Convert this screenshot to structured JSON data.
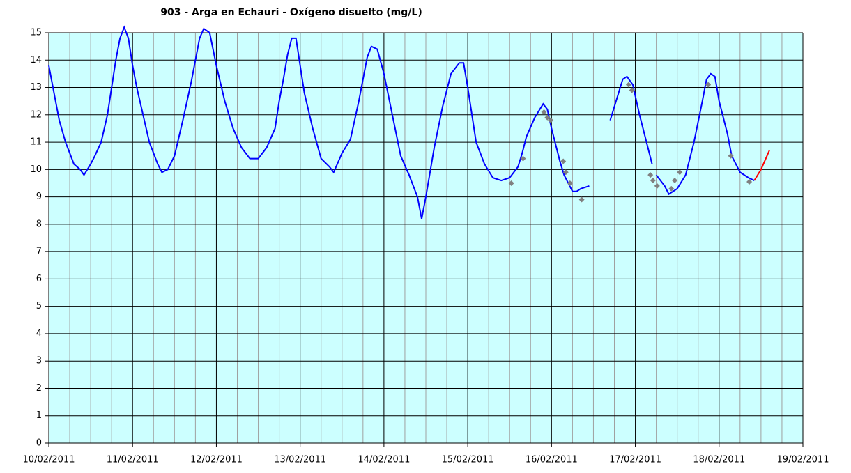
{
  "chart_data": {
    "type": "line",
    "title": "903 - Arga en Echauri - Oxígeno disuelto (mg/L)",
    "xlim": [
      40584,
      40593
    ],
    "xticks": [
      {
        "value": 40584,
        "label": "10/02/2011"
      },
      {
        "value": 40585,
        "label": "11/02/2011"
      },
      {
        "value": 40586,
        "label": "12/02/2011"
      },
      {
        "value": 40587,
        "label": "13/02/2011"
      },
      {
        "value": 40588,
        "label": "14/02/2011"
      },
      {
        "value": 40589,
        "label": "15/02/2011"
      },
      {
        "value": 40590,
        "label": "16/02/2011"
      },
      {
        "value": 40591,
        "label": "17/02/2011"
      },
      {
        "value": 40592,
        "label": "18/02/2011"
      },
      {
        "value": 40593,
        "label": "19/02/2011"
      }
    ],
    "ylim": [
      0,
      15
    ],
    "yticks": [
      0,
      1,
      2,
      3,
      4,
      5,
      6,
      7,
      8,
      9,
      10,
      11,
      12,
      13,
      14,
      15
    ],
    "grid": true,
    "series": [
      {
        "type": "line",
        "color": "#0000ff",
        "x": [
          40584,
          40584.0625,
          40584.125,
          40584.2,
          40584.25,
          40584.3,
          40584.375,
          40584.42,
          40584.5,
          40584.55,
          40584.625,
          40584.7,
          40584.75,
          40584.8,
          40584.85,
          40584.9,
          40584.95,
          40585,
          40585.05,
          40585.125,
          40585.2,
          40585.3,
          40585.35,
          40585.42,
          40585.5,
          40585.6,
          40585.7,
          40585.75,
          40585.8,
          40585.85,
          40585.92,
          40586,
          40586.1,
          40586.2,
          40586.3,
          40586.4,
          40586.5,
          40586.6,
          40586.7,
          40586.75,
          40586.8,
          40586.85,
          40586.9,
          40586.95,
          40587,
          40587.05,
          40587.15,
          40587.25,
          40587.35,
          40587.4,
          40587.5,
          40587.6,
          40587.7,
          40587.8,
          40587.85,
          40587.92,
          40588,
          40588.1,
          40588.2,
          40588.3,
          40588.4,
          40588.45,
          40588.5,
          40588.6,
          40588.7,
          40588.8,
          40588.9,
          40588.95,
          40589,
          40589.1,
          40589.2,
          40589.3,
          40589.4,
          40589.5,
          40589.6,
          40589.65,
          40589.7,
          40589.8,
          40589.9,
          40589.95,
          40590,
          40590.1,
          40590.15,
          40590.25,
          40590.3,
          40590.35,
          40590.45,
          40590.55,
          40590.7,
          40590.8,
          40590.85,
          40590.9,
          40590.97,
          40591.05,
          40591.15,
          40591.2,
          40591.22,
          40591.25,
          40591.35,
          40591.4,
          40591.5,
          40591.6,
          40591.7,
          40591.8,
          40591.85,
          40591.9,
          40591.95,
          40592,
          40592.1,
          40592.15,
          40592.25,
          40592.35,
          40592.42
        ],
        "values": [
          13.8,
          12.8,
          11.8,
          11.0,
          10.6,
          10.2,
          10.0,
          9.8,
          10.2,
          10.5,
          11.0,
          12.0,
          13.0,
          14.0,
          14.8,
          15.2,
          14.8,
          13.8,
          13.0,
          12.0,
          11.0,
          10.2,
          9.9,
          10.0,
          10.5,
          11.8,
          13.2,
          14.0,
          14.8,
          15.15,
          15.0,
          13.8,
          12.5,
          11.5,
          10.8,
          10.4,
          10.4,
          10.8,
          11.5,
          12.5,
          13.3,
          14.2,
          14.8,
          14.8,
          13.8,
          12.8,
          11.5,
          10.4,
          10.1,
          9.9,
          10.6,
          11.1,
          12.5,
          14.1,
          14.5,
          14.4,
          13.5,
          12.0,
          10.5,
          9.8,
          9.0,
          8.2,
          9.0,
          10.8,
          12.3,
          13.5,
          13.9,
          13.9,
          13.0,
          11.0,
          10.2,
          9.7,
          9.6,
          9.7,
          10.1,
          10.6,
          11.2,
          11.9,
          12.4,
          12.2,
          11.5,
          10.3,
          9.8,
          9.2,
          9.2,
          9.3,
          9.4,
          null,
          11.8,
          12.8,
          13.3,
          13.4,
          13.1,
          12.0,
          10.8,
          10.2,
          null,
          9.8,
          9.4,
          9.1,
          9.3,
          9.8,
          11.0,
          12.5,
          13.3,
          13.5,
          13.4,
          12.5,
          11.3,
          10.5,
          9.9,
          9.7,
          9.6
        ]
      },
      {
        "type": "scatter",
        "color": "#808080",
        "x": [
          40589.52,
          40589.66,
          40589.91,
          40589.95,
          40589.99,
          40590.14,
          40590.17,
          40590.22,
          40590.36,
          40590.92,
          40590.96,
          40591.18,
          40591.21,
          40591.26,
          40591.43,
          40591.47,
          40591.53,
          40591.87,
          40592.14,
          40592.36
        ],
        "values": [
          9.5,
          10.4,
          12.1,
          11.9,
          11.8,
          10.3,
          9.9,
          9.5,
          8.9,
          13.1,
          12.9,
          9.8,
          9.6,
          9.4,
          9.3,
          9.6,
          9.9,
          13.1,
          10.5,
          9.55
        ]
      },
      {
        "type": "line",
        "color": "#ff0000",
        "x": [
          40592.42,
          40592.5,
          40592.6
        ],
        "values": [
          9.6,
          10.0,
          10.7
        ]
      }
    ]
  }
}
